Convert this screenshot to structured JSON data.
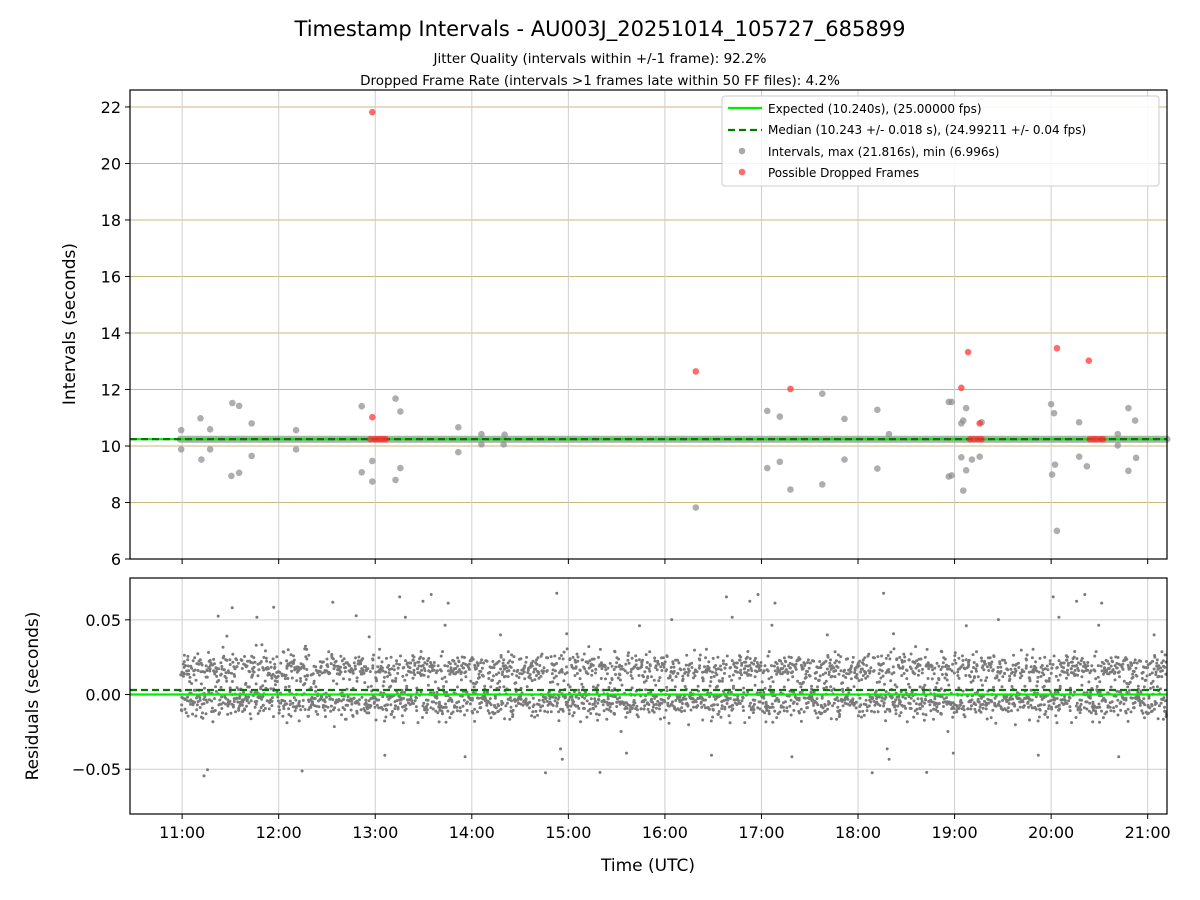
{
  "chart_data": {
    "type": "scatter",
    "title": "Timestamp Intervals - AU003J_20251014_105727_685899",
    "subtitles": [
      "Jitter Quality (intervals within +/-1 frame): 92.2%",
      "Dropped Frame Rate (intervals >1 frames late within 50 FF files): 4.2%"
    ],
    "xlabel": "Time (UTC)",
    "x_unit": "hours (UTC)",
    "xlim": [
      10.46,
      21.2
    ],
    "x_ticks": [
      11,
      12,
      13,
      14,
      15,
      16,
      17,
      18,
      19,
      20,
      21
    ],
    "x_tick_labels": [
      "11:00",
      "12:00",
      "13:00",
      "14:00",
      "15:00",
      "16:00",
      "17:00",
      "18:00",
      "19:00",
      "20:00",
      "21:00"
    ],
    "top_panel": {
      "ylabel": "Intervals (seconds)",
      "ylim": [
        6,
        22.6
      ],
      "y_ticks": [
        6,
        8,
        10,
        12,
        14,
        16,
        18,
        20,
        22
      ],
      "y_tick_labels": [
        "6",
        "8",
        "10",
        "12",
        "14",
        "16",
        "18",
        "20",
        "22"
      ],
      "grid": true,
      "expected_interval": 10.24,
      "median_interval": 10.243,
      "series": [
        {
          "name": "Expected (10.240s), (25.00000 fps)",
          "style": "solid",
          "color": "#00ee00"
        },
        {
          "name": "Median (10.243 +/- 0.018 s), (24.99211 +/- 0.04 fps)",
          "style": "dashed",
          "color": "#007a00"
        },
        {
          "name": "Intervals, max (21.816s), min (6.996s)",
          "style": "marker",
          "color": "#8c8c8c"
        },
        {
          "name": "Possible Dropped Frames",
          "style": "marker",
          "color": "#ff3b3b"
        }
      ],
      "dense_band": {
        "x_start": 10.98,
        "x_end": 21.2,
        "y": 10.24
      },
      "gray_points": [
        [
          10.99,
          10.56
        ],
        [
          10.99,
          9.88
        ],
        [
          11.19,
          10.98
        ],
        [
          11.2,
          9.52
        ],
        [
          11.29,
          10.59
        ],
        [
          11.29,
          9.88
        ],
        [
          11.52,
          11.52
        ],
        [
          11.51,
          8.94
        ],
        [
          11.59,
          11.42
        ],
        [
          11.59,
          9.05
        ],
        [
          11.72,
          10.8
        ],
        [
          11.72,
          9.65
        ],
        [
          12.18,
          10.56
        ],
        [
          12.18,
          9.88
        ],
        [
          12.86,
          11.41
        ],
        [
          12.86,
          9.07
        ],
        [
          12.97,
          9.47
        ],
        [
          12.97,
          8.74
        ],
        [
          13.21,
          11.68
        ],
        [
          13.21,
          8.8
        ],
        [
          13.26,
          11.22
        ],
        [
          13.26,
          9.22
        ],
        [
          13.86,
          10.66
        ],
        [
          13.86,
          9.78
        ],
        [
          14.1,
          10.42
        ],
        [
          14.1,
          10.06
        ],
        [
          14.33,
          10.06
        ],
        [
          14.34,
          10.4
        ],
        [
          16.32,
          7.82
        ],
        [
          17.06,
          11.24
        ],
        [
          17.06,
          9.22
        ],
        [
          17.19,
          11.04
        ],
        [
          17.19,
          9.44
        ],
        [
          17.3,
          8.46
        ],
        [
          17.63,
          11.85
        ],
        [
          17.63,
          8.64
        ],
        [
          17.86,
          10.96
        ],
        [
          17.86,
          9.52
        ],
        [
          18.2,
          11.28
        ],
        [
          18.2,
          9.2
        ],
        [
          18.32,
          10.42
        ],
        [
          18.94,
          11.56
        ],
        [
          18.94,
          8.92
        ],
        [
          18.97,
          11.56
        ],
        [
          18.97,
          8.96
        ],
        [
          19.07,
          10.8
        ],
        [
          19.07,
          9.6
        ],
        [
          19.09,
          10.9
        ],
        [
          19.09,
          8.42
        ],
        [
          19.12,
          11.34
        ],
        [
          19.12,
          9.14
        ],
        [
          19.18,
          9.52
        ],
        [
          19.26,
          9.62
        ],
        [
          19.28,
          10.84
        ],
        [
          20.0,
          11.48
        ],
        [
          20.01,
          8.99
        ],
        [
          20.03,
          11.16
        ],
        [
          20.04,
          9.34
        ],
        [
          20.06,
          6.996
        ],
        [
          20.29,
          10.84
        ],
        [
          20.29,
          9.62
        ],
        [
          20.37,
          9.28
        ],
        [
          20.69,
          10.42
        ],
        [
          20.69,
          10.02
        ],
        [
          20.8,
          11.34
        ],
        [
          20.8,
          9.12
        ],
        [
          20.87,
          10.9
        ],
        [
          20.88,
          9.58
        ]
      ],
      "red_points": [
        [
          12.97,
          21.816
        ],
        [
          12.97,
          11.02
        ],
        [
          16.32,
          12.64
        ],
        [
          17.3,
          12.02
        ],
        [
          19.07,
          12.06
        ],
        [
          19.14,
          13.32
        ],
        [
          19.26,
          10.8
        ],
        [
          20.06,
          13.46
        ],
        [
          20.39,
          13.02
        ],
        [
          12.95,
          10.24
        ],
        [
          12.99,
          10.24
        ],
        [
          13.02,
          10.24
        ],
        [
          13.05,
          10.24
        ],
        [
          13.08,
          10.24
        ],
        [
          13.11,
          10.24
        ],
        [
          19.16,
          10.24
        ],
        [
          19.2,
          10.24
        ],
        [
          19.24,
          10.24
        ],
        [
          19.28,
          10.24
        ],
        [
          20.4,
          10.24
        ],
        [
          20.44,
          10.24
        ],
        [
          20.47,
          10.24
        ],
        [
          20.51,
          10.24
        ],
        [
          20.54,
          10.24
        ]
      ]
    },
    "bottom_panel": {
      "ylabel": "Residuals (seconds)",
      "ylim": [
        -0.08,
        0.078
      ],
      "y_ticks": [
        -0.05,
        0.0,
        0.05
      ],
      "y_tick_labels": [
        "−0.05",
        "0.00",
        "0.05"
      ],
      "grid": true,
      "expected_residual": 0.0,
      "median_residual": 0.003,
      "point_count": 3500,
      "residual_range": [
        -0.056,
        0.069
      ],
      "residual_cluster_centers": [
        -0.005,
        0.018
      ]
    }
  }
}
